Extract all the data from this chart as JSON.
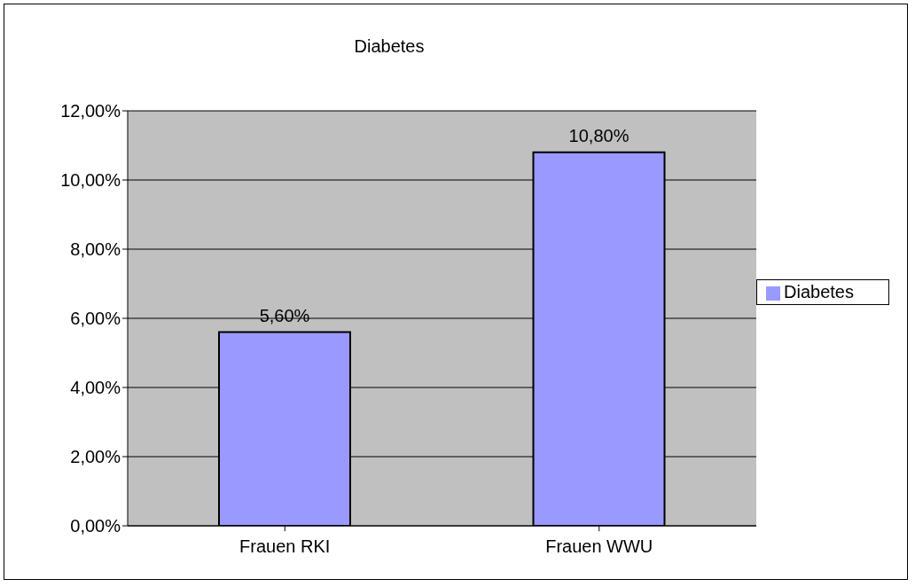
{
  "chart_data": {
    "type": "bar",
    "title": "Diabetes",
    "categories": [
      "Frauen RKI",
      "Frauen WWU"
    ],
    "series": [
      {
        "name": "Diabetes",
        "color": "#9999ff",
        "values": [
          5.6,
          10.8
        ],
        "value_labels": [
          "5,60%",
          "10,80%"
        ]
      }
    ],
    "ylim": [
      0,
      12
    ],
    "yticks": [
      {
        "value": 0,
        "label": "0,00%"
      },
      {
        "value": 2,
        "label": "2,00%"
      },
      {
        "value": 4,
        "label": "4,00%"
      },
      {
        "value": 6,
        "label": "6,00%"
      },
      {
        "value": 8,
        "label": "8,00%"
      },
      {
        "value": 10,
        "label": "10,00%"
      },
      {
        "value": 12,
        "label": "12,00%"
      }
    ],
    "grid": "y",
    "legend": "right"
  }
}
